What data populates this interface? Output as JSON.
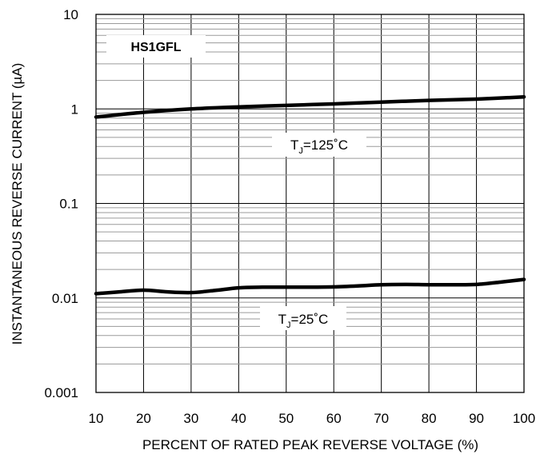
{
  "chart_data": {
    "type": "line",
    "title": "",
    "xlabel": "PERCENT OF RATED PEAK REVERSE VOLTAGE (%)",
    "ylabel": "INSTANTANEOUS REVERSE CURRENT (µA)",
    "xlim": [
      10,
      100
    ],
    "ylim": [
      0.001,
      10
    ],
    "yscale": "log",
    "grid": true,
    "x_ticks": [
      10,
      20,
      30,
      40,
      50,
      60,
      70,
      80,
      90,
      100
    ],
    "x_tick_labels": [
      "10",
      "20",
      "30",
      "40",
      "50",
      "60",
      "70",
      "80",
      "90",
      "100"
    ],
    "y_ticks": [
      0.001,
      0.01,
      0.1,
      1,
      10
    ],
    "y_tick_labels": [
      "0.001",
      "0.01",
      "0.1",
      "1",
      "10"
    ],
    "part_label": "HS1GFL",
    "series": [
      {
        "name": "TJ=125°C",
        "x": [
          10,
          20,
          30,
          40,
          50,
          60,
          70,
          80,
          90,
          100
        ],
        "y": [
          0.82,
          0.92,
          1.0,
          1.05,
          1.09,
          1.13,
          1.18,
          1.23,
          1.27,
          1.34
        ]
      },
      {
        "name": "TJ=25°C",
        "x": [
          10,
          15,
          20,
          25,
          30,
          35,
          40,
          45,
          50,
          55,
          60,
          65,
          70,
          75,
          80,
          85,
          90,
          95,
          100
        ],
        "y": [
          0.0111,
          0.0116,
          0.0121,
          0.0116,
          0.0114,
          0.012,
          0.0128,
          0.013,
          0.013,
          0.013,
          0.0131,
          0.0134,
          0.0138,
          0.0139,
          0.0138,
          0.0138,
          0.0139,
          0.0147,
          0.0157
        ]
      }
    ],
    "annotations": [
      {
        "main": "T",
        "sub": "J",
        "rest": "=125˚C"
      },
      {
        "main": "T",
        "sub": "J",
        "rest": "=25˚C"
      }
    ]
  }
}
